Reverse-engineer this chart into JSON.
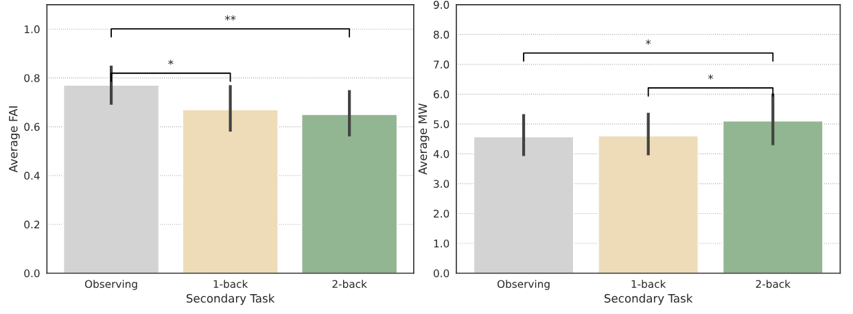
{
  "chart_data": [
    {
      "type": "bar",
      "xlabel": "Secondary Task",
      "ylabel": "Average FAI",
      "categories": [
        "Observing",
        "1-back",
        "2-back"
      ],
      "values": [
        0.77,
        0.67,
        0.65
      ],
      "colors": [
        "#d3d3d3",
        "#eedcb9",
        "#92b592"
      ],
      "errors": [
        [
          0.69,
          0.85
        ],
        [
          0.58,
          0.77
        ],
        [
          0.56,
          0.75
        ]
      ],
      "ylim": [
        0,
        1.1
      ],
      "yticks": [
        {
          "value": 0,
          "label": "0.0"
        },
        {
          "value": 0.2,
          "label": "0.2"
        },
        {
          "value": 0.4,
          "label": "0.4"
        },
        {
          "value": 0.6,
          "label": "0.6"
        },
        {
          "value": 0.8,
          "label": "0.8"
        },
        {
          "value": 1.0,
          "label": "1.0"
        }
      ],
      "grid": "y",
      "annotations": [
        "**",
        "*"
      ]
    },
    {
      "type": "bar",
      "xlabel": "Secondary Task",
      "ylabel": "Average MW",
      "categories": [
        "Observing",
        "1-back",
        "2-back"
      ],
      "values": [
        4.57,
        4.6,
        5.1
      ],
      "colors": [
        "#d3d3d3",
        "#eedcb9",
        "#92b592"
      ],
      "errors": [
        [
          3.93,
          5.33
        ],
        [
          3.95,
          5.38
        ],
        [
          4.29,
          6.02
        ]
      ],
      "ylim": [
        0,
        9
      ],
      "yticks": [
        {
          "value": 0,
          "label": "0.0"
        },
        {
          "value": 1,
          "label": "1.0"
        },
        {
          "value": 2,
          "label": "2.0"
        },
        {
          "value": 3,
          "label": "3.0"
        },
        {
          "value": 4,
          "label": "4.0"
        },
        {
          "value": 5,
          "label": "5.0"
        },
        {
          "value": 6,
          "label": "6.0"
        },
        {
          "value": 7,
          "label": "7.0"
        },
        {
          "value": 8,
          "label": "8.0"
        },
        {
          "value": 9,
          "label": "9.0"
        }
      ],
      "grid": "y",
      "annotations": [
        "*",
        "*"
      ]
    }
  ]
}
